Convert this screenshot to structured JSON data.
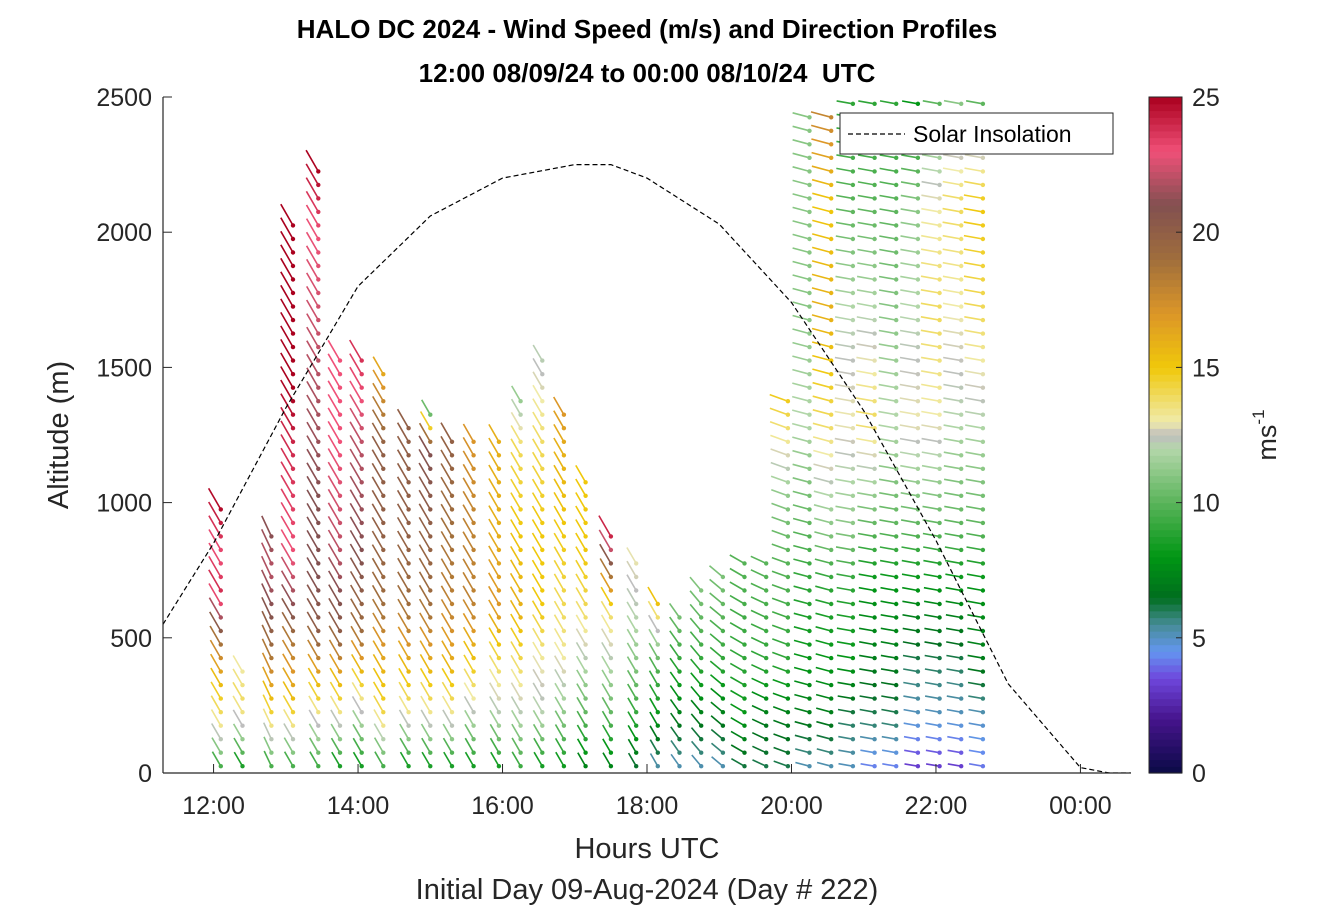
{
  "chart_data": {
    "type": "wind-barb-profile",
    "title": "HALO DC 2024 - Wind Speed (m/s) and Direction Profiles",
    "subtitle": "12:00 08/09/24 to 00:00 08/10/24  UTC",
    "xlabel": "Hours UTC",
    "xlabel2": "Initial Day 09-Aug-2024 (Day # 222)",
    "ylabel": "Altitude (m)",
    "xlim_hours": [
      11.3,
      24.7
    ],
    "ylim": [
      0,
      2500
    ],
    "x_ticks": [
      {
        "value": 12,
        "label": "12:00"
      },
      {
        "value": 14,
        "label": "14:00"
      },
      {
        "value": 16,
        "label": "16:00"
      },
      {
        "value": 18,
        "label": "18:00"
      },
      {
        "value": 20,
        "label": "20:00"
      },
      {
        "value": 22,
        "label": "22:00"
      },
      {
        "value": 24,
        "label": "00:00"
      }
    ],
    "y_ticks": [
      0,
      500,
      1000,
      1500,
      2000,
      2500
    ],
    "colorbar": {
      "label": "ms",
      "label_exponent": "-1",
      "range": [
        0,
        25
      ],
      "ticks": [
        0,
        5,
        10,
        15,
        20,
        25
      ]
    },
    "legend": {
      "entries": [
        "Solar Insolation"
      ],
      "position": "top-right"
    },
    "solar_insolation_curve": [
      [
        11.3,
        550
      ],
      [
        12,
        850
      ],
      [
        13,
        1350
      ],
      [
        14,
        1800
      ],
      [
        15,
        2060
      ],
      [
        16,
        2200
      ],
      [
        17,
        2250
      ],
      [
        17.5,
        2250
      ],
      [
        18,
        2200
      ],
      [
        19,
        2030
      ],
      [
        20,
        1740
      ],
      [
        21,
        1340
      ],
      [
        22,
        860
      ],
      [
        23,
        330
      ],
      [
        24.0,
        20
      ],
      [
        24.4,
        0
      ],
      [
        24.7,
        0
      ]
    ],
    "profiles": [
      {
        "t": 12.1,
        "top": 1000,
        "speeds": [
          [
            0,
            9
          ],
          [
            150,
            13
          ],
          [
            300,
            15
          ],
          [
            450,
            18
          ],
          [
            550,
            21
          ],
          [
            650,
            24
          ],
          [
            800,
            23
          ],
          [
            1000,
            25
          ]
        ],
        "dir": 330
      },
      {
        "t": 12.4,
        "top": 400,
        "speeds": [
          [
            0,
            8
          ],
          [
            150,
            12
          ],
          [
            250,
            14
          ],
          [
            400,
            13
          ]
        ],
        "dir": 330
      },
      {
        "t": 12.8,
        "top": 900,
        "speeds": [
          [
            0,
            9
          ],
          [
            150,
            13
          ],
          [
            300,
            16
          ],
          [
            450,
            19
          ],
          [
            600,
            21
          ],
          [
            750,
            22
          ],
          [
            900,
            21
          ]
        ],
        "dir": 335
      },
      {
        "t": 13.1,
        "top": 2050,
        "speeds": [
          [
            0,
            9
          ],
          [
            150,
            13
          ],
          [
            300,
            16
          ],
          [
            450,
            18
          ],
          [
            600,
            21
          ],
          [
            800,
            23
          ],
          [
            1200,
            24
          ],
          [
            1400,
            25
          ],
          [
            2050,
            25
          ]
        ],
        "dir": 330
      },
      {
        "t": 13.45,
        "top": 2230,
        "speeds": [
          [
            0,
            9
          ],
          [
            200,
            13
          ],
          [
            350,
            16
          ],
          [
            500,
            20
          ],
          [
            700,
            21
          ],
          [
            1000,
            21
          ],
          [
            1500,
            22
          ],
          [
            2000,
            23
          ],
          [
            2230,
            25
          ]
        ],
        "dir": 330
      },
      {
        "t": 13.75,
        "top": 1550,
        "speeds": [
          [
            0,
            8
          ],
          [
            200,
            13
          ],
          [
            350,
            16
          ],
          [
            500,
            20
          ],
          [
            800,
            22
          ],
          [
            1200,
            23
          ],
          [
            1550,
            23
          ]
        ],
        "dir": 330
      },
      {
        "t": 14.05,
        "top": 1570,
        "speeds": [
          [
            0,
            8
          ],
          [
            200,
            12
          ],
          [
            350,
            15
          ],
          [
            500,
            19
          ],
          [
            800,
            21
          ],
          [
            1200,
            22
          ],
          [
            1570,
            24
          ]
        ],
        "dir": 330
      },
      {
        "t": 14.35,
        "top": 1500,
        "speeds": [
          [
            0,
            9
          ],
          [
            200,
            14
          ],
          [
            400,
            16
          ],
          [
            600,
            19
          ],
          [
            900,
            20
          ],
          [
            1200,
            20
          ],
          [
            1500,
            16
          ]
        ],
        "dir": 330
      },
      {
        "t": 14.7,
        "top": 1300,
        "speeds": [
          [
            0,
            8
          ],
          [
            200,
            13
          ],
          [
            400,
            16
          ],
          [
            600,
            19
          ],
          [
            900,
            20
          ],
          [
            1300,
            20
          ]
        ],
        "dir": 330
      },
      {
        "t": 15.0,
        "top": 1330,
        "speeds": [
          [
            0,
            8
          ],
          [
            200,
            13
          ],
          [
            400,
            16
          ],
          [
            600,
            19
          ],
          [
            900,
            20
          ],
          [
            1200,
            21
          ],
          [
            1330,
            10
          ]
        ],
        "dir": 330
      },
      {
        "t": 15.3,
        "top": 1250,
        "speeds": [
          [
            0,
            8
          ],
          [
            200,
            13
          ],
          [
            400,
            16
          ],
          [
            600,
            18
          ],
          [
            900,
            19
          ],
          [
            1250,
            20
          ]
        ],
        "dir": 330
      },
      {
        "t": 15.6,
        "top": 1250,
        "speeds": [
          [
            0,
            8
          ],
          [
            200,
            12
          ],
          [
            400,
            15
          ],
          [
            600,
            18
          ],
          [
            900,
            18
          ],
          [
            1250,
            17
          ]
        ],
        "dir": 330
      },
      {
        "t": 15.95,
        "top": 1270,
        "speeds": [
          [
            0,
            8
          ],
          [
            200,
            12
          ],
          [
            400,
            14
          ],
          [
            600,
            17
          ],
          [
            900,
            16
          ],
          [
            1270,
            16
          ]
        ],
        "dir": 330
      },
      {
        "t": 16.25,
        "top": 1400,
        "speeds": [
          [
            0,
            9
          ],
          [
            200,
            12
          ],
          [
            400,
            14
          ],
          [
            600,
            16
          ],
          [
            900,
            15
          ],
          [
            1200,
            14
          ],
          [
            1400,
            11
          ]
        ],
        "dir": 330
      },
      {
        "t": 16.55,
        "top": 1560,
        "speeds": [
          [
            0,
            8
          ],
          [
            200,
            12
          ],
          [
            400,
            13
          ],
          [
            600,
            15
          ],
          [
            900,
            15
          ],
          [
            1200,
            14
          ],
          [
            1560,
            12
          ]
        ],
        "dir": 330
      },
      {
        "t": 16.85,
        "top": 1330,
        "speeds": [
          [
            0,
            8
          ],
          [
            200,
            11
          ],
          [
            400,
            13
          ],
          [
            600,
            14
          ],
          [
            900,
            15
          ],
          [
            1200,
            16
          ],
          [
            1330,
            17
          ]
        ],
        "dir": 330
      },
      {
        "t": 17.15,
        "top": 1100,
        "speeds": [
          [
            0,
            7
          ],
          [
            200,
            10
          ],
          [
            400,
            12
          ],
          [
            600,
            14
          ],
          [
            800,
            15
          ],
          [
            1100,
            15
          ]
        ],
        "dir": 330
      },
      {
        "t": 17.5,
        "top": 900,
        "speeds": [
          [
            0,
            7
          ],
          [
            200,
            10
          ],
          [
            400,
            12
          ],
          [
            600,
            14
          ],
          [
            900,
            25
          ]
        ],
        "dir": 330
      },
      {
        "t": 17.85,
        "top": 800,
        "speeds": [
          [
            0,
            6
          ],
          [
            200,
            9
          ],
          [
            400,
            11
          ],
          [
            550,
            12
          ],
          [
            800,
            13
          ]
        ],
        "dir": 330
      },
      {
        "t": 18.15,
        "top": 650,
        "speeds": [
          [
            0,
            5
          ],
          [
            200,
            8
          ],
          [
            400,
            10
          ],
          [
            550,
            13
          ],
          [
            650,
            16
          ]
        ],
        "dir": 330
      },
      {
        "t": 18.45,
        "top": 620,
        "speeds": [
          [
            0,
            5
          ],
          [
            200,
            7
          ],
          [
            400,
            9
          ],
          [
            620,
            11
          ]
        ],
        "dir": 325
      },
      {
        "t": 18.75,
        "top": 700,
        "speeds": [
          [
            0,
            5
          ],
          [
            200,
            7
          ],
          [
            400,
            9
          ],
          [
            700,
            11
          ]
        ],
        "dir": 320
      },
      {
        "t": 19.05,
        "top": 770,
        "speeds": [
          [
            0,
            5
          ],
          [
            200,
            7
          ],
          [
            400,
            9
          ],
          [
            770,
            11
          ]
        ],
        "dir": 310
      },
      {
        "t": 19.35,
        "top": 820,
        "speeds": [
          [
            0,
            6
          ],
          [
            200,
            8
          ],
          [
            400,
            9
          ],
          [
            820,
            10
          ]
        ],
        "dir": 300
      },
      {
        "t": 19.65,
        "top": 780,
        "speeds": [
          [
            0,
            6
          ],
          [
            200,
            7
          ],
          [
            400,
            9
          ],
          [
            780,
            10
          ]
        ],
        "dir": 295
      },
      {
        "t": 19.95,
        "top": 1400,
        "speeds": [
          [
            0,
            6
          ],
          [
            200,
            7
          ],
          [
            400,
            9
          ],
          [
            800,
            10
          ],
          [
            1000,
            11
          ],
          [
            1400,
            15
          ]
        ],
        "dir": 290
      },
      {
        "t": 20.25,
        "top": 2450,
        "speeds": [
          [
            0,
            5
          ],
          [
            200,
            7
          ],
          [
            400,
            8
          ],
          [
            700,
            9
          ],
          [
            900,
            10
          ],
          [
            1300,
            12
          ],
          [
            1700,
            11
          ],
          [
            2100,
            11
          ],
          [
            2450,
            11
          ]
        ],
        "dir": 285
      },
      {
        "t": 20.55,
        "top": 2450,
        "speeds": [
          [
            0,
            5
          ],
          [
            200,
            7
          ],
          [
            400,
            8
          ],
          [
            700,
            9
          ],
          [
            900,
            11
          ],
          [
            1300,
            14
          ],
          [
            1700,
            16
          ],
          [
            2100,
            15
          ],
          [
            2450,
            18
          ]
        ],
        "dir": 285
      },
      {
        "t": 20.85,
        "top": 2480,
        "speeds": [
          [
            0,
            5
          ],
          [
            200,
            6
          ],
          [
            400,
            8
          ],
          [
            700,
            9
          ],
          [
            900,
            11
          ],
          [
            1300,
            13
          ],
          [
            1700,
            12
          ],
          [
            2100,
            10
          ],
          [
            2480,
            9
          ]
        ],
        "dir": 280
      },
      {
        "t": 21.15,
        "top": 2480,
        "speeds": [
          [
            0,
            4
          ],
          [
            200,
            6
          ],
          [
            400,
            7
          ],
          [
            700,
            8
          ],
          [
            900,
            10
          ],
          [
            1300,
            14
          ],
          [
            1700,
            12
          ],
          [
            2100,
            10
          ],
          [
            2480,
            9
          ]
        ],
        "dir": 280
      },
      {
        "t": 21.45,
        "top": 2480,
        "speeds": [
          [
            0,
            4
          ],
          [
            200,
            6
          ],
          [
            400,
            7
          ],
          [
            700,
            8
          ],
          [
            900,
            10
          ],
          [
            1300,
            12
          ],
          [
            1700,
            11
          ],
          [
            2100,
            10
          ],
          [
            2480,
            9
          ]
        ],
        "dir": 280
      },
      {
        "t": 21.75,
        "top": 2480,
        "speeds": [
          [
            0,
            3
          ],
          [
            200,
            5
          ],
          [
            400,
            6
          ],
          [
            700,
            8
          ],
          [
            900,
            10
          ],
          [
            1300,
            13
          ],
          [
            1700,
            12
          ],
          [
            2100,
            11
          ],
          [
            2480,
            8
          ]
        ],
        "dir": 280
      },
      {
        "t": 22.05,
        "top": 2480,
        "speeds": [
          [
            0,
            3
          ],
          [
            200,
            5
          ],
          [
            400,
            6
          ],
          [
            700,
            8
          ],
          [
            900,
            10
          ],
          [
            1300,
            13
          ],
          [
            1700,
            14
          ],
          [
            2100,
            13
          ],
          [
            2480,
            10
          ]
        ],
        "dir": 280
      },
      {
        "t": 22.35,
        "top": 2480,
        "speeds": [
          [
            0,
            3
          ],
          [
            200,
            5
          ],
          [
            400,
            6
          ],
          [
            700,
            8
          ],
          [
            900,
            10
          ],
          [
            1300,
            12
          ],
          [
            1700,
            13
          ],
          [
            2100,
            14
          ],
          [
            2480,
            11
          ]
        ],
        "dir": 280
      },
      {
        "t": 22.65,
        "top": 2480,
        "speeds": [
          [
            0,
            4
          ],
          [
            200,
            5
          ],
          [
            400,
            7
          ],
          [
            700,
            8
          ],
          [
            900,
            10
          ],
          [
            1300,
            12
          ],
          [
            1700,
            14
          ],
          [
            2100,
            15
          ],
          [
            2480,
            10
          ]
        ],
        "dir": 280
      }
    ]
  }
}
